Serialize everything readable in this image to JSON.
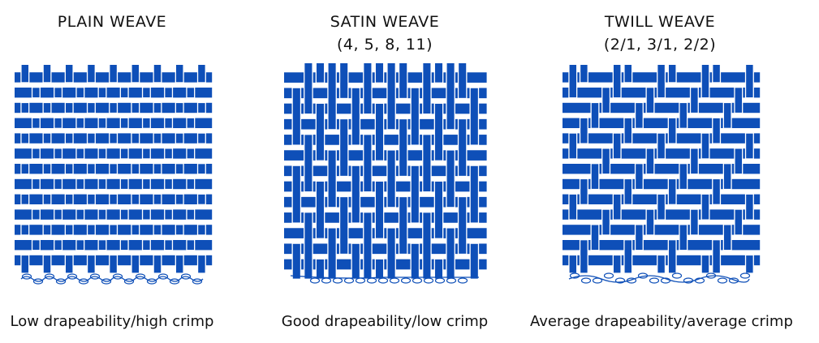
{
  "colors": {
    "thread": "#0e4fb8",
    "thread_dark": "#0a3e96",
    "background": "#ffffff"
  },
  "panels": [
    {
      "id": "plain",
      "title": [
        "PLAIN WEAVE",
        ""
      ],
      "caption": "Low drapeability/high crimp"
    },
    {
      "id": "satin",
      "title": [
        "SATIN WEAVE",
        "(4, 5, 8, 11)"
      ],
      "caption": "Good drapeability/low crimp"
    },
    {
      "id": "twill",
      "title": [
        "TWILL WEAVE",
        "(2/1, 3/1, 2/2)"
      ],
      "caption": "Average drapeability/average crimp"
    }
  ]
}
